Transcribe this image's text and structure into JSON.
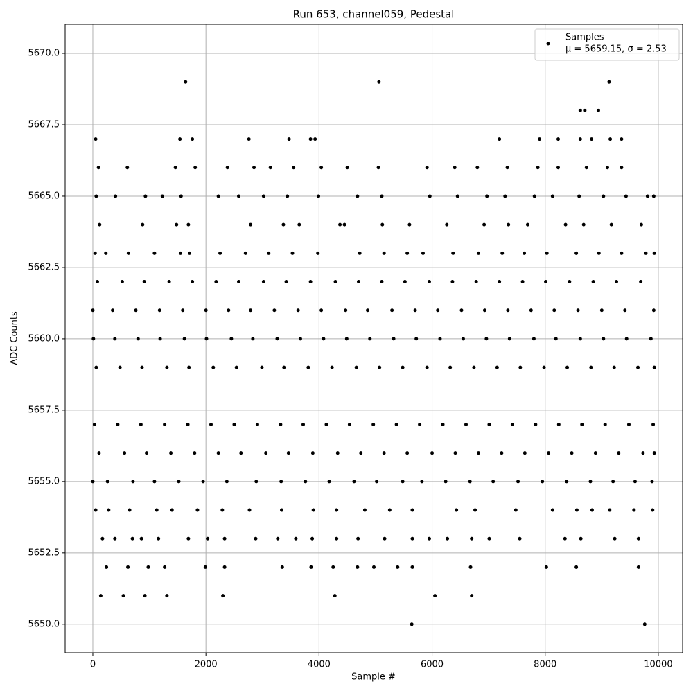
{
  "chart_data": {
    "type": "scatter",
    "title": "Run 653, channel059, Pedestal",
    "xlabel": "Sample #",
    "ylabel": "ADC Counts",
    "xlim": [
      -490,
      10430
    ],
    "ylim": [
      5649.0,
      5671.02
    ],
    "xticks": [
      0,
      2000,
      4000,
      6000,
      8000,
      10000
    ],
    "yticks": [
      {
        "value": 5650,
        "label": "5650.0"
      },
      {
        "value": 5652.5,
        "label": "5652.5"
      },
      {
        "value": 5655,
        "label": "5655.0"
      },
      {
        "value": 5657.5,
        "label": "5657.5"
      },
      {
        "value": 5660,
        "label": "5660.0"
      },
      {
        "value": 5662.5,
        "label": "5662.5"
      },
      {
        "value": 5665,
        "label": "5665.0"
      },
      {
        "value": 5667.5,
        "label": "5667.5"
      },
      {
        "value": 5670,
        "label": "5670.0"
      }
    ],
    "grid": true,
    "legend": "upper right",
    "legend_note": "μ = 5659.15, σ = 2.53",
    "x": [
      60,
      480,
      870,
      1310,
      1700,
      2130,
      2540,
      2990,
      3380,
      3810,
      4230,
      4660,
      5070,
      5480,
      5910,
      6320,
      6740,
      7150,
      7560,
      7980,
      8390,
      8810,
      9220,
      9640,
      9930,
      10,
      390,
      800,
      1190,
      1620,
      2010,
      2450,
      2830,
      3260,
      3670,
      4080,
      4490,
      4900,
      5320,
      5720,
      6140,
      6550,
      6960,
      7370,
      7800,
      8190,
      8620,
      9030,
      9440,
      9870,
      0,
      350,
      760,
      1180,
      1590,
      2000,
      2400,
      2790,
      3210,
      3630,
      4040,
      4470,
      4860,
      5290,
      5700,
      6100,
      6520,
      6930,
      7340,
      7750,
      8160,
      8580,
      9000,
      9410,
      9920,
      30,
      440,
      850,
      1270,
      1680,
      2090,
      2500,
      2910,
      3320,
      3720,
      4130,
      4540,
      4960,
      5370,
      5780,
      6190,
      6600,
      7010,
      7420,
      7830,
      8240,
      8650,
      9060,
      9480,
      9910,
      80,
      520,
      910,
      1350,
      1760,
      2180,
      2580,
      3020,
      3420,
      3850,
      4290,
      4700,
      5110,
      5520,
      5950,
      6360,
      6780,
      7190,
      7600,
      8010,
      8430,
      8850,
      9260,
      9690,
      110,
      560,
      950,
      1380,
      1800,
      2220,
      2620,
      3060,
      3460,
      3890,
      4330,
      4740,
      5150,
      5560,
      6000,
      6410,
      6820,
      7230,
      7640,
      8060,
      8470,
      8890,
      9300,
      9730,
      9930,
      0,
      260,
      710,
      1090,
      1520,
      1950,
      2370,
      2890,
      3330,
      3760,
      4180,
      4620,
      5020,
      5480,
      5820,
      6240,
      6670,
      7080,
      7520,
      7950,
      8380,
      8800,
      9200,
      9590,
      9890,
      40,
      230,
      630,
      1090,
      1550,
      1710,
      2250,
      2700,
      3110,
      3530,
      3980,
      4720,
      5150,
      5560,
      5840,
      6370,
      6820,
      7240,
      7630,
      8030,
      8550,
      8950,
      9350,
      9780,
      9930,
      50,
      280,
      650,
      1130,
      1400,
      1850,
      2290,
      2770,
      3340,
      3900,
      4310,
      4810,
      5250,
      5650,
      6430,
      6760,
      7480,
      8130,
      8560,
      8830,
      9140,
      9570,
      9900,
      120,
      880,
      1480,
      1690,
      2790,
      3370,
      3650,
      4370,
      4450,
      5120,
      5600,
      6260,
      6920,
      7350,
      7690,
      8360,
      8680,
      9170,
      9700,
      60,
      400,
      930,
      1230,
      1560,
      2220,
      2580,
      3020,
      3440,
      3990,
      4680,
      5110,
      5960,
      6450,
      6970,
      7290,
      7810,
      8130,
      8600,
      9030,
      9430,
      9810,
      9920,
      170,
      390,
      700,
      860,
      1160,
      1690,
      2030,
      2330,
      2880,
      3270,
      3590,
      3880,
      4310,
      4690,
      5160,
      5650,
      5950,
      6270,
      6700,
      7010,
      7550,
      8350,
      8630,
      9230,
      9650,
      100,
      610,
      1460,
      1810,
      2380,
      2850,
      3140,
      3550,
      4040,
      4500,
      5050,
      5910,
      6400,
      6800,
      7330,
      7870,
      8230,
      8730,
      9100,
      9350,
      240,
      620,
      980,
      1270,
      1990,
      2330,
      3350,
      3860,
      4250,
      4680,
      4970,
      5390,
      5650,
      6680,
      8020,
      8550,
      9650,
      5640,
      9760,
      1640,
      5060,
      9130,
      8620,
      8700,
      8940,
      50,
      1540,
      1760,
      2760,
      3470,
      3850,
      3930,
      7190,
      7900,
      8230,
      8620,
      8820,
      9150,
      9350,
      140,
      540,
      920,
      1310,
      2300,
      4280,
      6050,
      6700
    ],
    "series": [
      {
        "name": "Samples",
        "color": "#000000",
        "values": [
          5659,
          5659,
          5659,
          5659,
          5659,
          5659,
          5659,
          5659,
          5659,
          5659,
          5659,
          5659,
          5659,
          5659,
          5659,
          5659,
          5659,
          5659,
          5659,
          5659,
          5659,
          5659,
          5659,
          5659,
          5659,
          5660,
          5660,
          5660,
          5660,
          5660,
          5660,
          5660,
          5660,
          5660,
          5660,
          5660,
          5660,
          5660,
          5660,
          5660,
          5660,
          5660,
          5660,
          5660,
          5660,
          5660,
          5660,
          5660,
          5660,
          5660,
          5661,
          5661,
          5661,
          5661,
          5661,
          5661,
          5661,
          5661,
          5661,
          5661,
          5661,
          5661,
          5661,
          5661,
          5661,
          5661,
          5661,
          5661,
          5661,
          5661,
          5661,
          5661,
          5661,
          5661,
          5661,
          5657,
          5657,
          5657,
          5657,
          5657,
          5657,
          5657,
          5657,
          5657,
          5657,
          5657,
          5657,
          5657,
          5657,
          5657,
          5657,
          5657,
          5657,
          5657,
          5657,
          5657,
          5657,
          5657,
          5657,
          5657,
          5662,
          5662,
          5662,
          5662,
          5662,
          5662,
          5662,
          5662,
          5662,
          5662,
          5662,
          5662,
          5662,
          5662,
          5662,
          5662,
          5662,
          5662,
          5662,
          5662,
          5662,
          5662,
          5662,
          5662,
          5656,
          5656,
          5656,
          5656,
          5656,
          5656,
          5656,
          5656,
          5656,
          5656,
          5656,
          5656,
          5656,
          5656,
          5656,
          5656,
          5656,
          5656,
          5656,
          5656,
          5656,
          5656,
          5656,
          5656,
          5656,
          5655,
          5655,
          5655,
          5655,
          5655,
          5655,
          5655,
          5655,
          5655,
          5655,
          5655,
          5655,
          5655,
          5655,
          5655,
          5655,
          5655,
          5655,
          5655,
          5655,
          5655,
          5655,
          5655,
          5655,
          5655,
          5663,
          5663,
          5663,
          5663,
          5663,
          5663,
          5663,
          5663,
          5663,
          5663,
          5663,
          5663,
          5663,
          5663,
          5663,
          5663,
          5663,
          5663,
          5663,
          5663,
          5663,
          5663,
          5663,
          5663,
          5663,
          5654,
          5654,
          5654,
          5654,
          5654,
          5654,
          5654,
          5654,
          5654,
          5654,
          5654,
          5654,
          5654,
          5654,
          5654,
          5654,
          5654,
          5654,
          5654,
          5654,
          5654,
          5654,
          5654,
          5664,
          5664,
          5664,
          5664,
          5664,
          5664,
          5664,
          5664,
          5664,
          5664,
          5664,
          5664,
          5664,
          5664,
          5664,
          5664,
          5664,
          5664,
          5664,
          5665,
          5665,
          5665,
          5665,
          5665,
          5665,
          5665,
          5665,
          5665,
          5665,
          5665,
          5665,
          5665,
          5665,
          5665,
          5665,
          5665,
          5665,
          5665,
          5665,
          5665,
          5665,
          5665,
          5653,
          5653,
          5653,
          5653,
          5653,
          5653,
          5653,
          5653,
          5653,
          5653,
          5653,
          5653,
          5653,
          5653,
          5653,
          5653,
          5653,
          5653,
          5653,
          5653,
          5653,
          5653,
          5653,
          5653,
          5653,
          5666,
          5666,
          5666,
          5666,
          5666,
          5666,
          5666,
          5666,
          5666,
          5666,
          5666,
          5666,
          5666,
          5666,
          5666,
          5666,
          5666,
          5666,
          5666,
          5666,
          5652,
          5652,
          5652,
          5652,
          5652,
          5652,
          5652,
          5652,
          5652,
          5652,
          5652,
          5652,
          5652,
          5652,
          5652,
          5652,
          5652,
          5650,
          5650,
          5669,
          5669,
          5669,
          5668,
          5668,
          5668,
          5667,
          5667,
          5667,
          5667,
          5667,
          5667,
          5667,
          5667,
          5667,
          5667,
          5667,
          5667,
          5667,
          5667,
          5651,
          5651,
          5651,
          5651,
          5651,
          5651,
          5651,
          5651
        ]
      }
    ]
  }
}
